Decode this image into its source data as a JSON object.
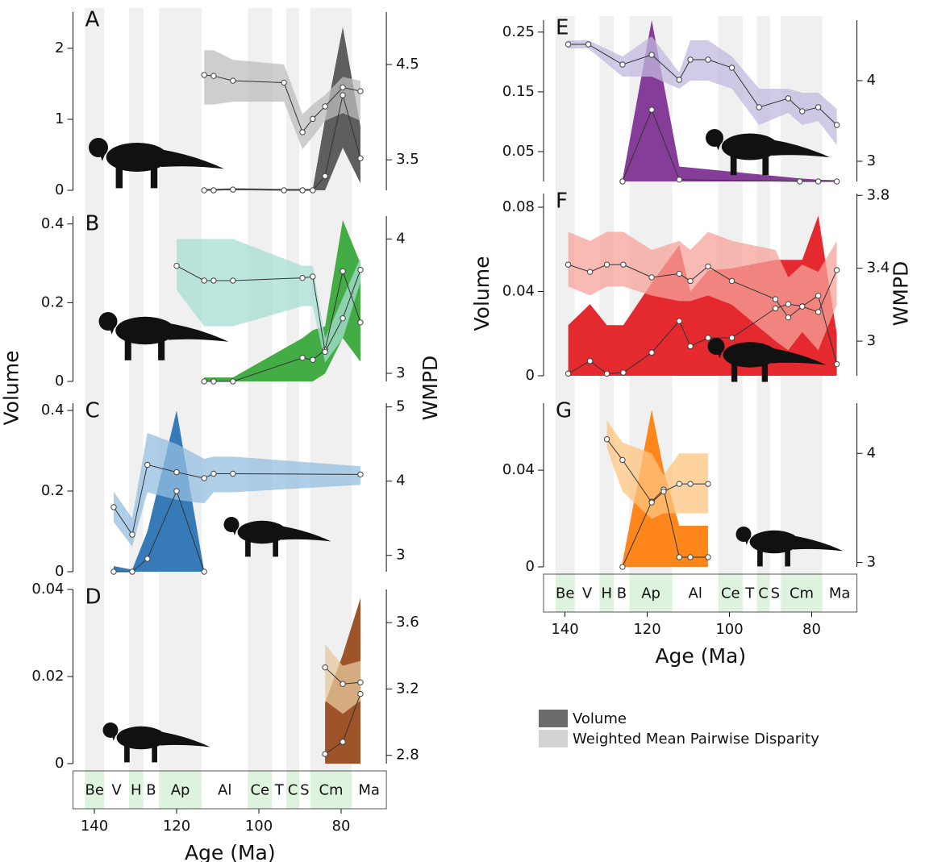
{
  "chart_data": [
    {
      "type": "line",
      "label": "A",
      "xlim": [
        145,
        69
      ],
      "ylim": [
        0,
        2.51
      ],
      "yticks": [
        0,
        1,
        2
      ],
      "y2lim": [
        3.18,
        5.05
      ],
      "y2ticks": [
        3.5,
        4.5
      ],
      "series": [
        {
          "color": "#555555",
          "x": [
            113.3,
            111,
            106.3,
            93.9,
            89.4,
            86.9,
            83.9,
            79.6,
            75.3
          ],
          "values": [
            0,
            0,
            0.01,
            0,
            0,
            0,
            0.2,
            1.34,
            0.45
          ],
          "upper": [
            0.02,
            0.02,
            0.03,
            0.02,
            0.02,
            0.02,
            1.0,
            2.3,
            0.9
          ],
          "lower": [
            0,
            0,
            0,
            0,
            0,
            0,
            0,
            0.6,
            0.1
          ]
        },
        {
          "color": "#bdbdbd",
          "axis": "y2",
          "x": [
            113.3,
            111,
            106.3,
            93.9,
            89.4,
            86.9,
            83.9,
            79.6,
            75.3
          ],
          "values": [
            4.39,
            4.38,
            4.33,
            4.31,
            3.79,
            3.93,
            4.06,
            4.26,
            4.22
          ],
          "upper": [
            4.65,
            4.65,
            4.55,
            4.5,
            3.98,
            4.08,
            4.18,
            4.37,
            4.33
          ],
          "lower": [
            4.08,
            4.08,
            4.11,
            4.11,
            3.61,
            3.74,
            3.91,
            3.99,
            3.91
          ]
        }
      ]
    },
    {
      "type": "line",
      "label": "B",
      "xlim": [
        145,
        69
      ],
      "ylim": [
        0,
        0.42
      ],
      "yticks": [
        0,
        0.2,
        0.4
      ],
      "y2lim": [
        2.94,
        4.17
      ],
      "y2ticks": [
        3,
        4
      ],
      "series": [
        {
          "color": "#3aa83a",
          "x": [
            113.3,
            111,
            106.3,
            89.4,
            86.9,
            83.9,
            79.6,
            75.3
          ],
          "values": [
            0,
            0,
            0,
            0.06,
            0.055,
            0.08,
            0.28,
            0.15
          ],
          "upper": [
            0.01,
            0.01,
            0.01,
            0.11,
            0.13,
            0.14,
            0.41,
            0.3
          ],
          "lower": [
            0,
            0,
            0,
            0,
            0,
            0.02,
            0.11,
            0.05
          ]
        },
        {
          "color": "#a6ddd3",
          "axis": "y2",
          "x": [
            120,
            113.3,
            111,
            106.3,
            89.4,
            86.9,
            83.9,
            79.6,
            75.3
          ],
          "values": [
            3.8,
            3.69,
            3.69,
            3.69,
            3.71,
            3.72,
            3.16,
            3.41,
            3.77
          ],
          "upper": [
            4.0,
            4.0,
            4.0,
            4.0,
            3.8,
            3.8,
            3.26,
            3.56,
            3.86
          ],
          "lower": [
            3.62,
            3.35,
            3.35,
            3.35,
            3.5,
            3.5,
            3.08,
            3.26,
            3.68
          ]
        }
      ]
    },
    {
      "type": "line",
      "label": "C",
      "ylabel": "Volume",
      "y2label": "WMPD",
      "xlim": [
        145,
        69
      ],
      "ylim": [
        0,
        0.418
      ],
      "yticks": [
        0,
        0.2,
        0.4
      ],
      "y2lim": [
        2.78,
        5.05
      ],
      "y2ticks": [
        3,
        4,
        5
      ],
      "series": [
        {
          "color": "#2b73b3",
          "x": [
            135.3,
            130.8,
            127.1,
            120,
            113.3
          ],
          "values": [
            0,
            0,
            0.032,
            0.2,
            0
          ],
          "upper": [
            0.014,
            0.005,
            0.1,
            0.4,
            0.002
          ],
          "lower": [
            0,
            0,
            0,
            0,
            0
          ]
        },
        {
          "color": "#94bfe0",
          "axis": "y2",
          "x": [
            135.3,
            130.8,
            127.1,
            120,
            113.3,
            111,
            106.3,
            75.3
          ],
          "values": [
            3.65,
            3.28,
            4.22,
            4.12,
            4.04,
            4.1,
            4.1,
            4.09
          ],
          "upper": [
            3.86,
            3.5,
            4.65,
            4.5,
            4.3,
            4.33,
            4.33,
            4.2
          ],
          "lower": [
            3.45,
            3.12,
            3.85,
            3.75,
            3.7,
            3.85,
            3.85,
            3.95
          ]
        }
      ]
    },
    {
      "type": "line",
      "label": "D",
      "xlabel": "Age (Ma)",
      "xlim": [
        145,
        69
      ],
      "xticks": [
        140,
        120,
        100,
        80
      ],
      "ylim": [
        0,
        0.04
      ],
      "yticks": [
        0,
        0.02,
        0.04
      ],
      "y2lim": [
        2.75,
        3.8
      ],
      "y2ticks": [
        2.8,
        3.2,
        3.6
      ],
      "stages": [
        {
          "label": "Be",
          "start": 142.3,
          "end": 137.6,
          "shaded": true
        },
        {
          "label": "V",
          "start": 137.6,
          "end": 131.6,
          "shaded": false
        },
        {
          "label": "H",
          "start": 131.6,
          "end": 128.1,
          "shaded": true
        },
        {
          "label": "B",
          "start": 128.1,
          "end": 124.3,
          "shaded": false
        },
        {
          "label": "Ap",
          "start": 124.3,
          "end": 113.9,
          "shaded": true
        },
        {
          "label": "Al",
          "start": 113.9,
          "end": 102.7,
          "shaded": false
        },
        {
          "label": "Ce",
          "start": 102.7,
          "end": 96.8,
          "shaded": true
        },
        {
          "label": "T",
          "start": 96.8,
          "end": 93.3,
          "shaded": false
        },
        {
          "label": "C",
          "start": 93.3,
          "end": 90.2,
          "shaded": true
        },
        {
          "label": "S",
          "start": 90.2,
          "end": 87.5,
          "shaded": false
        },
        {
          "label": "Cm",
          "start": 87.5,
          "end": 77.4,
          "shaded": true
        },
        {
          "label": "Ma",
          "start": 77.4,
          "end": 69,
          "shaded": false
        }
      ],
      "series": [
        {
          "color": "#994a1c",
          "x": [
            83.9,
            79.6,
            75.3
          ],
          "values": [
            0.0022,
            0.005,
            0.016
          ],
          "upper": [
            0.014,
            0.025,
            0.038
          ],
          "lower": [
            0,
            0,
            0
          ]
        },
        {
          "color": "#e7c89e",
          "axis": "y2",
          "x": [
            83.9,
            79.6,
            75.3
          ],
          "values": [
            3.33,
            3.23,
            3.24
          ],
          "upper": [
            3.47,
            3.34,
            3.37
          ],
          "lower": [
            3.13,
            3.05,
            3.13
          ]
        }
      ]
    },
    {
      "type": "line",
      "label": "E",
      "xlim": [
        145,
        69
      ],
      "ylim": [
        0,
        0.27
      ],
      "yticks": [
        0.05,
        0.15,
        0.25
      ],
      "y2lim": [
        2.75,
        4.75
      ],
      "y2ticks": [
        3,
        4
      ],
      "series": [
        {
          "color": "#7f3394",
          "x": [
            126,
            118.9,
            112.2,
            82.9,
            78.4,
            73.9
          ],
          "values": [
            0,
            0.12,
            0.003,
            0,
            0,
            0
          ],
          "upper": [
            0.003,
            0.27,
            0.025,
            0.005,
            0.003,
            0.002
          ],
          "lower": [
            0,
            0,
            0,
            0,
            0,
            0
          ]
        },
        {
          "color": "#c2badf",
          "axis": "y2",
          "x": [
            139.2,
            134.3,
            126,
            118.9,
            112.2,
            109.5,
            105.2,
            99.4,
            92.8,
            85.7,
            82.3,
            78.4,
            73.9
          ],
          "values": [
            4.45,
            4.45,
            4.2,
            4.32,
            4.01,
            4.26,
            4.26,
            4.16,
            3.67,
            3.78,
            3.62,
            3.67,
            3.45
          ],
          "upper": [
            4.5,
            4.5,
            4.3,
            4.55,
            4.1,
            4.5,
            4.5,
            4.3,
            3.9,
            3.9,
            3.85,
            3.85,
            3.65
          ],
          "lower": [
            4.4,
            4.4,
            4.05,
            4.05,
            3.9,
            4.0,
            4.0,
            3.9,
            3.45,
            3.6,
            3.45,
            3.5,
            3.2
          ]
        }
      ]
    },
    {
      "type": "line",
      "label": "F",
      "ylabel": "Volume",
      "y2label": "WMPD",
      "xlim": [
        145,
        69
      ],
      "ylim": [
        0,
        0.0865
      ],
      "yticks": [
        0,
        0.04,
        0.08
      ],
      "y2lim": [
        2.81,
        3.81
      ],
      "y2ticks": [
        3,
        3.4,
        3.8
      ],
      "series": [
        {
          "color": "#e31e24",
          "x": [
            139.2,
            133.9,
            129.8,
            125.8,
            118.9,
            112.2,
            109.5,
            105.2,
            99.4,
            88.8,
            85.7,
            82.3,
            78.4,
            73.9
          ],
          "values": [
            0.001,
            0.007,
            0.001,
            0.0015,
            0.011,
            0.026,
            0.014,
            0.018,
            0.018,
            0.032,
            0.034,
            0.033,
            0.038,
            0.0055
          ],
          "upper": [
            0.024,
            0.034,
            0.024,
            0.024,
            0.044,
            0.062,
            0.04,
            0.05,
            0.051,
            0.055,
            0.055,
            0.055,
            0.076,
            0.02
          ],
          "lower": [
            0,
            0,
            0,
            0,
            0,
            0,
            0,
            0,
            0,
            0,
            0,
            0,
            0,
            0
          ]
        },
        {
          "color": "#f7a39b",
          "axis": "y2",
          "x": [
            139.2,
            133.9,
            129.8,
            125.8,
            118.9,
            112.2,
            109.5,
            105.2,
            99.4,
            88.8,
            85.7,
            82.3,
            78.4,
            73.9
          ],
          "values": [
            3.42,
            3.38,
            3.42,
            3.42,
            3.35,
            3.37,
            3.33,
            3.41,
            3.33,
            3.23,
            3.13,
            3.19,
            3.16,
            3.39
          ],
          "upper": [
            3.6,
            3.55,
            3.6,
            3.6,
            3.5,
            3.55,
            3.5,
            3.6,
            3.55,
            3.5,
            3.35,
            3.42,
            3.38,
            3.55
          ],
          "lower": [
            3.3,
            3.25,
            3.3,
            3.3,
            3.25,
            3.22,
            3.22,
            3.25,
            3.2,
            3.0,
            2.95,
            3.05,
            2.95,
            3.2
          ]
        }
      ]
    },
    {
      "type": "line",
      "label": "G",
      "xlabel": "Age (Ma)",
      "xlim": [
        145,
        69
      ],
      "xticks": [
        140,
        120,
        100,
        80
      ],
      "ylim": [
        0,
        0.0677
      ],
      "yticks": [
        0,
        0.04
      ],
      "y2lim": [
        2.96,
        4.46
      ],
      "y2ticks": [
        3,
        4
      ],
      "stages": [
        {
          "label": "Be",
          "start": 142.3,
          "end": 137.6,
          "shaded": true
        },
        {
          "label": "V",
          "start": 137.6,
          "end": 131.6,
          "shaded": false
        },
        {
          "label": "H",
          "start": 131.6,
          "end": 128.1,
          "shaded": true
        },
        {
          "label": "B",
          "start": 128.1,
          "end": 124.3,
          "shaded": false
        },
        {
          "label": "Ap",
          "start": 124.3,
          "end": 113.9,
          "shaded": true
        },
        {
          "label": "Al",
          "start": 113.9,
          "end": 102.7,
          "shaded": false
        },
        {
          "label": "Ce",
          "start": 102.7,
          "end": 96.8,
          "shaded": true
        },
        {
          "label": "T",
          "start": 96.8,
          "end": 93.3,
          "shaded": false
        },
        {
          "label": "C",
          "start": 93.3,
          "end": 90.2,
          "shaded": true
        },
        {
          "label": "S",
          "start": 90.2,
          "end": 87.5,
          "shaded": false
        },
        {
          "label": "Cm",
          "start": 87.5,
          "end": 77.4,
          "shaded": true
        },
        {
          "label": "Ma",
          "start": 77.4,
          "end": 69,
          "shaded": false
        }
      ],
      "series": [
        {
          "color": "#ff7f0e",
          "x": [
            126,
            118.9,
            116,
            112.2,
            109.5,
            105.2
          ],
          "values": [
            0,
            0.027,
            0.032,
            0.004,
            0.004,
            0.004
          ],
          "upper": [
            0.002,
            0.065,
            0.04,
            0.017,
            0.017,
            0.017
          ],
          "lower": [
            0,
            0,
            0,
            0,
            0,
            0
          ]
        },
        {
          "color": "#ffc47f",
          "axis": "y2",
          "x": [
            129.8,
            126,
            118.9,
            116,
            112.2,
            109.5,
            105.2
          ],
          "values": [
            4.13,
            3.94,
            3.55,
            3.65,
            3.72,
            3.72,
            3.72
          ],
          "upper": [
            4.3,
            4.1,
            4.0,
            3.8,
            4.0,
            4.0,
            4.0
          ],
          "lower": [
            4.05,
            3.65,
            3.4,
            3.45,
            3.45,
            3.45,
            3.45
          ]
        }
      ]
    }
  ],
  "legend": [
    {
      "name": "Volume",
      "color": "#6b6b6b"
    },
    {
      "name": "Weighted Mean Pairwise Disparity",
      "color": "#d3d3d3"
    }
  ]
}
